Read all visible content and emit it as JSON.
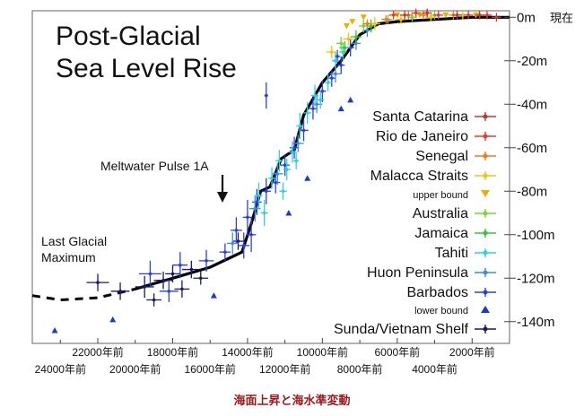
{
  "chart_data": {
    "type": "scatter",
    "title_lines": [
      "Post-Glacial",
      "Sea Level Rise"
    ],
    "caption": "海面上昇と海水準変動",
    "xlim": [
      -25500,
      0
    ],
    "ylim": [
      -150,
      3
    ],
    "y_ticks": [
      {
        "value": 0,
        "label": "0m",
        "suffix": "現在"
      },
      {
        "value": -20,
        "label": "-20m"
      },
      {
        "value": -40,
        "label": "-40m"
      },
      {
        "value": -60,
        "label": "-60m"
      },
      {
        "value": -80,
        "label": "-80m"
      },
      {
        "value": -100,
        "label": "-100m"
      },
      {
        "value": -120,
        "label": "-120m"
      },
      {
        "value": -140,
        "label": "-140m"
      }
    ],
    "x_ticks_upper": [
      {
        "value": -22000,
        "label": "22000年前"
      },
      {
        "value": -18000,
        "label": "18000年前"
      },
      {
        "value": -14000,
        "label": "14000年前"
      },
      {
        "value": -10000,
        "label": "10000年前"
      },
      {
        "value": -6000,
        "label": "6000年前"
      },
      {
        "value": -2000,
        "label": "2000年前"
      }
    ],
    "x_ticks_lower": [
      {
        "value": -24000,
        "label": "24000年前"
      },
      {
        "value": -20000,
        "label": "20000年前"
      },
      {
        "value": -16000,
        "label": "16000年前"
      },
      {
        "value": -12000,
        "label": "12000年前"
      },
      {
        "value": -8000,
        "label": "8000年前"
      },
      {
        "value": -4000,
        "label": "4000年前"
      }
    ],
    "annotations": [
      {
        "id": "mwp",
        "text": "Meltwater Pulse 1A",
        "x": -14200,
        "y": -82
      },
      {
        "id": "lgm",
        "lines": [
          "Last Glacial",
          "Maximum"
        ]
      }
    ],
    "trend_line": {
      "dashed": [
        [
          -25500,
          -128
        ],
        [
          -24000,
          -130
        ],
        [
          -22000,
          -129
        ],
        [
          -20000,
          -125
        ]
      ],
      "solid": [
        [
          -20000,
          -125
        ],
        [
          -18000,
          -120
        ],
        [
          -16000,
          -115
        ],
        [
          -14300,
          -108
        ],
        [
          -13800,
          -95
        ],
        [
          -13300,
          -80
        ],
        [
          -12800,
          -78
        ],
        [
          -12200,
          -65
        ],
        [
          -11500,
          -61
        ],
        [
          -11000,
          -45
        ],
        [
          -10000,
          -30
        ],
        [
          -9000,
          -20
        ],
        [
          -8000,
          -8
        ],
        [
          -7000,
          -3
        ],
        [
          -6000,
          -2
        ],
        [
          -4000,
          -1
        ],
        [
          -2000,
          0
        ],
        [
          0,
          0
        ]
      ]
    },
    "legend": [
      {
        "name": "Santa Catarina",
        "color": "#c0392b",
        "marker": "cross"
      },
      {
        "name": "Rio de Janeiro",
        "color": "#e53b2c",
        "marker": "cross"
      },
      {
        "name": "Senegal",
        "color": "#f07a1a",
        "marker": "cross"
      },
      {
        "name": "Malacca Straits",
        "color": "#f4c20d",
        "marker": "cross"
      },
      {
        "name": "upper bound",
        "color": "#e8b000",
        "marker": "tri-down",
        "small": true
      },
      {
        "name": "Australia",
        "color": "#7bd33b",
        "marker": "cross"
      },
      {
        "name": "Jamaica",
        "color": "#37c23a",
        "marker": "cross"
      },
      {
        "name": "Tahiti",
        "color": "#2ad1e0",
        "marker": "cross"
      },
      {
        "name": "Huon Peninsula",
        "color": "#3a8de0",
        "marker": "cross"
      },
      {
        "name": "Barbados",
        "color": "#2a40e0",
        "marker": "cross"
      },
      {
        "name": "lower bound",
        "color": "#1a3ad0",
        "marker": "tri-up",
        "small": true
      },
      {
        "name": "Sunda/Vietnam Shelf",
        "color": "#1a1a6a",
        "marker": "cross"
      }
    ],
    "series": [
      {
        "name": "Sunda/Vietnam Shelf",
        "color": "#1a1a6a",
        "points": [
          [
            -22000,
            -122,
            600,
            4
          ],
          [
            -20800,
            -126,
            500,
            4
          ],
          [
            -19500,
            -124,
            500,
            5
          ],
          [
            -19000,
            -130,
            400,
            3
          ],
          [
            -18500,
            -121,
            500,
            4
          ],
          [
            -18000,
            -118,
            400,
            4
          ],
          [
            -17500,
            -125,
            400,
            4
          ],
          [
            -17000,
            -116,
            500,
            4
          ],
          [
            -16500,
            -120,
            400,
            3
          ],
          [
            -14500,
            -103,
            300,
            4
          ]
        ]
      },
      {
        "name": "Barbados",
        "color": "#2a40e0",
        "points": [
          [
            -19200,
            -118,
            600,
            6
          ],
          [
            -18200,
            -126,
            500,
            5
          ],
          [
            -17600,
            -114,
            400,
            6
          ],
          [
            -16200,
            -112,
            400,
            5
          ],
          [
            -15200,
            -108,
            300,
            4
          ],
          [
            -14600,
            -98,
            300,
            6
          ],
          [
            -14200,
            -105,
            300,
            6
          ],
          [
            -14000,
            -92,
            250,
            8
          ],
          [
            -13800,
            -100,
            250,
            8
          ],
          [
            -13500,
            -85,
            250,
            6
          ],
          [
            -13000,
            -80,
            250,
            6
          ],
          [
            -12500,
            -76,
            250,
            5
          ],
          [
            -12000,
            -68,
            250,
            5
          ],
          [
            -11500,
            -60,
            250,
            5
          ],
          [
            -11000,
            -52,
            250,
            5
          ],
          [
            -10500,
            -42,
            250,
            5
          ],
          [
            -10000,
            -34,
            200,
            5
          ],
          [
            -9500,
            -28,
            200,
            4
          ],
          [
            -9000,
            -22,
            200,
            4
          ],
          [
            -8500,
            -14,
            200,
            4
          ],
          [
            -13000,
            -36,
            100,
            6
          ],
          [
            -9200,
            -18,
            150,
            3
          ]
        ]
      },
      {
        "name": "lower bound",
        "color": "#1a3ad0",
        "marker": "tri-up",
        "points": [
          [
            -24300,
            -144
          ],
          [
            -21200,
            -139
          ],
          [
            -15800,
            -128
          ],
          [
            -11800,
            -90
          ],
          [
            -10800,
            -74
          ],
          [
            -9000,
            -42
          ],
          [
            -8500,
            -38
          ]
        ]
      },
      {
        "name": "Huon Peninsula",
        "color": "#3a8de0",
        "points": [
          [
            -14800,
            -104,
            300,
            5
          ],
          [
            -13600,
            -88,
            300,
            6
          ],
          [
            -12400,
            -72,
            300,
            5
          ],
          [
            -11300,
            -58,
            300,
            4
          ],
          [
            -10300,
            -40,
            300,
            4
          ],
          [
            -9300,
            -26,
            300,
            4
          ],
          [
            -8200,
            -12,
            250,
            3
          ],
          [
            -7600,
            -6,
            250,
            3
          ]
        ]
      },
      {
        "name": "Tahiti",
        "color": "#2ad1e0",
        "points": [
          [
            -13400,
            -82,
            200,
            6
          ],
          [
            -13100,
            -90,
            200,
            6
          ],
          [
            -12700,
            -74,
            200,
            5
          ],
          [
            -12300,
            -66,
            200,
            5
          ],
          [
            -11900,
            -70,
            200,
            5
          ],
          [
            -11600,
            -62,
            200,
            5
          ],
          [
            -11200,
            -50,
            200,
            6
          ],
          [
            -10800,
            -44,
            200,
            5
          ],
          [
            -10400,
            -36,
            200,
            5
          ],
          [
            -10100,
            -38,
            200,
            4
          ],
          [
            -9700,
            -30,
            200,
            4
          ],
          [
            -9300,
            -20,
            200,
            4
          ],
          [
            -8900,
            -16,
            200,
            4
          ],
          [
            -12100,
            -80,
            200,
            4
          ],
          [
            -11400,
            -66,
            150,
            4
          ]
        ]
      },
      {
        "name": "Jamaica",
        "color": "#37c23a",
        "points": [
          [
            -8800,
            -14,
            300,
            3
          ],
          [
            -8200,
            -9,
            300,
            3
          ],
          [
            -7400,
            -4,
            300,
            3
          ]
        ]
      },
      {
        "name": "Australia",
        "color": "#7bd33b",
        "points": [
          [
            -9000,
            -12,
            250,
            3
          ],
          [
            -7800,
            -4,
            250,
            3
          ],
          [
            -6500,
            -1,
            250,
            2
          ],
          [
            -5200,
            0,
            250,
            2
          ],
          [
            -4000,
            1,
            250,
            2
          ]
        ]
      },
      {
        "name": "Malacca Straits",
        "color": "#f4c20d",
        "points": [
          [
            -9500,
            -16,
            300,
            3
          ],
          [
            -8600,
            -10,
            300,
            3
          ],
          [
            -7200,
            -3,
            300,
            3
          ],
          [
            -5800,
            -1,
            300,
            2
          ],
          [
            -4200,
            0,
            300,
            2
          ],
          [
            -2500,
            1,
            300,
            2
          ]
        ]
      },
      {
        "name": "upper bound",
        "color": "#e8b000",
        "marker": "tri-down",
        "points": [
          [
            -8700,
            -4
          ],
          [
            -8400,
            -2
          ],
          [
            -7800,
            0
          ],
          [
            -6000,
            1
          ],
          [
            -4800,
            1
          ],
          [
            -3400,
            1
          ],
          [
            -1800,
            1
          ]
        ]
      },
      {
        "name": "Senegal",
        "color": "#f07a1a",
        "points": [
          [
            -7600,
            -3,
            250,
            2
          ],
          [
            -6600,
            -1,
            250,
            2
          ],
          [
            -5400,
            1,
            250,
            2
          ],
          [
            -4600,
            1,
            250,
            2
          ],
          [
            -3000,
            1,
            250,
            2
          ]
        ]
      },
      {
        "name": "Rio de Janeiro",
        "color": "#e53b2c",
        "points": [
          [
            -6200,
            1,
            250,
            2
          ],
          [
            -5000,
            2,
            250,
            2
          ],
          [
            -3800,
            1,
            250,
            2
          ],
          [
            -2200,
            1,
            250,
            2
          ],
          [
            -1200,
            1,
            250,
            2
          ]
        ]
      },
      {
        "name": "Santa Catarina",
        "color": "#c0392b",
        "points": [
          [
            -5600,
            1,
            250,
            2
          ],
          [
            -4400,
            2,
            250,
            2
          ],
          [
            -2800,
            1,
            250,
            2
          ],
          [
            -1600,
            1,
            250,
            2
          ],
          [
            -700,
            0,
            250,
            2
          ]
        ]
      }
    ]
  }
}
